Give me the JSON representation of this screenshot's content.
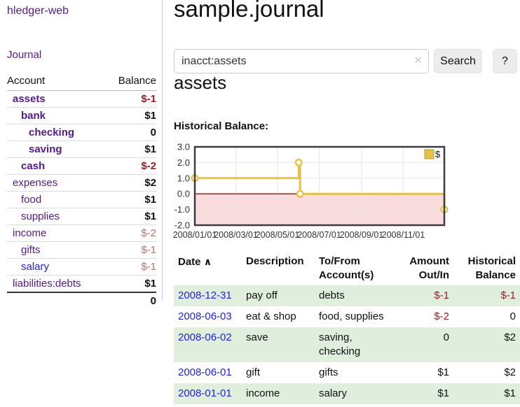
{
  "colors": {
    "accent_purple": "#551a8b",
    "link_blue": "#2222dd",
    "negative_strong": "#9d1b1b",
    "negative_soft": "#b96f6f",
    "row_green": "#dfeedd",
    "chart_gold": "#e5c04a",
    "chart_negative_bg": "#fbdcdc",
    "chart_zero_line": "#8b1010"
  },
  "sidebar": {
    "app_title": "hledger-web",
    "journal_link": "Journal",
    "header": {
      "account": "Account",
      "balance": "Balance"
    },
    "accounts": [
      {
        "name": "assets",
        "balance": "$-1"
      },
      {
        "name": "bank",
        "balance": "$1"
      },
      {
        "name": "checking",
        "balance": "0"
      },
      {
        "name": "saving",
        "balance": "$1"
      },
      {
        "name": "cash",
        "balance": "$-2"
      },
      {
        "name": "expenses",
        "balance": "$2"
      },
      {
        "name": "food",
        "balance": "$1"
      },
      {
        "name": "supplies",
        "balance": "$1"
      },
      {
        "name": "income",
        "balance": "$-2"
      },
      {
        "name": "gifts",
        "balance": "$-1"
      },
      {
        "name": "salary",
        "balance": "$-1"
      },
      {
        "name": "liabilities:debts",
        "balance": "$1"
      }
    ],
    "total": "0"
  },
  "main": {
    "title": "sample.journal",
    "search": {
      "value": "inacct:assets",
      "clear_icon": "✕",
      "search_button": "Search",
      "help_button": "?"
    },
    "account_heading": "assets",
    "chart_label": "Historical Balance:"
  },
  "chart_data": {
    "type": "line",
    "title": "Historical Balance:",
    "step": "after",
    "series": [
      {
        "name": "$",
        "color": "#e5c04a",
        "points": [
          {
            "date": "2008-01-01",
            "value": 1
          },
          {
            "date": "2008-06-01",
            "value": 2
          },
          {
            "date": "2008-06-03",
            "value": 0
          },
          {
            "date": "2008-12-31",
            "value": -1
          }
        ]
      }
    ],
    "x_range": [
      "2008-01-01",
      "2008-12-31"
    ],
    "ylim": [
      -2,
      3
    ],
    "y_ticks": [
      3,
      2,
      1,
      0,
      -1,
      -2
    ],
    "x_tick_dates": [
      "2008-01-01",
      "2008-03-01",
      "2008-05-01",
      "2008-07-01",
      "2008-09-01",
      "2008-11-01"
    ],
    "x_tick_labels": [
      "2008/01/01",
      "2008/03/01",
      "2008/05/01",
      "2008/07/01",
      "2008/09/01",
      "2008/11/01"
    ],
    "grid": true,
    "legend": {
      "label": "$",
      "position": "top-right"
    },
    "negative_region_color": "#fbdcdc",
    "zero_line_color": "#8b1010"
  },
  "register": {
    "headers": {
      "date": "Date",
      "sort_icon": "∧",
      "description": "Description",
      "account": "To/From Account(s)",
      "amount": "Amount Out/In",
      "balance": "Historical Balance"
    },
    "rows": [
      {
        "date": "2008-12-31",
        "description": "pay off",
        "account": "debts",
        "amount": "$-1",
        "balance": "$-1"
      },
      {
        "date": "2008-06-03",
        "description": "eat & shop",
        "account": "food, supplies",
        "amount": "$-2",
        "balance": "0"
      },
      {
        "date": "2008-06-02",
        "description": "save",
        "account": "saving, checking",
        "amount": "0",
        "balance": "$2"
      },
      {
        "date": "2008-06-01",
        "description": "gift",
        "account": "gifts",
        "amount": "$1",
        "balance": "$2"
      },
      {
        "date": "2008-01-01",
        "description": "income",
        "account": "salary",
        "amount": "$1",
        "balance": "$1"
      }
    ]
  }
}
